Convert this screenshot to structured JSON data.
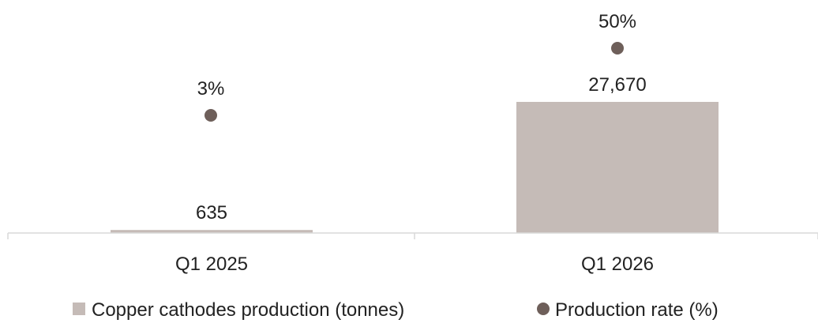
{
  "chart_data": {
    "type": "bar",
    "categories": [
      "Q1 2025",
      "Q1 2026"
    ],
    "series": [
      {
        "name": "Copper cathodes production (tonnes)",
        "kind": "bar",
        "values": [
          635,
          27670
        ],
        "labels": [
          "635",
          "27,670"
        ],
        "color": "#c5bbb7"
      },
      {
        "name": "Production rate (%)",
        "kind": "scatter",
        "values": [
          3,
          50
        ],
        "labels": [
          "3%",
          "50%"
        ],
        "color": "#6e5f5a"
      }
    ],
    "axis_color": "#d9d9d9",
    "grid": false,
    "legend": "bottom"
  }
}
